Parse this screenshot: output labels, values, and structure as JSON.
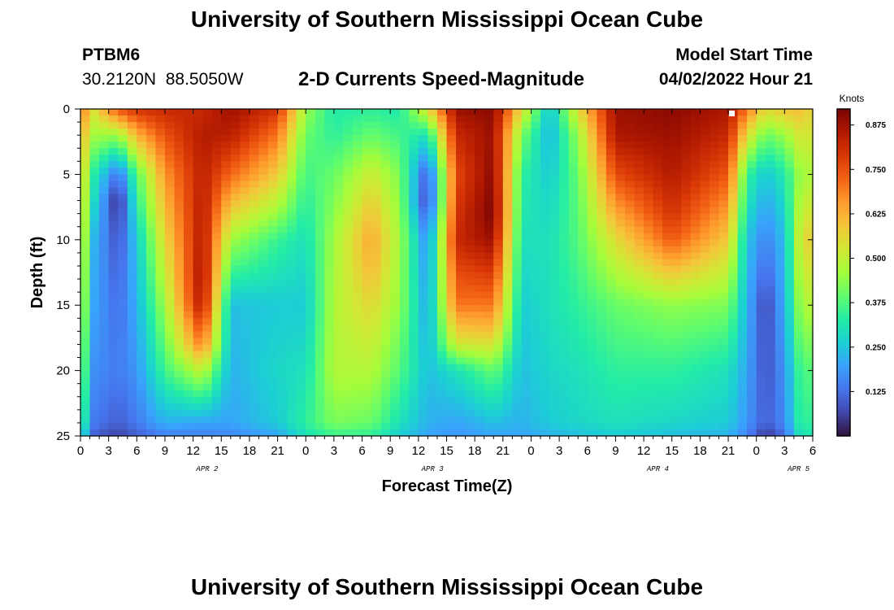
{
  "header": {
    "title": "University of Southern Mississippi Ocean Cube",
    "station_id": "PTBM6",
    "station_coords": "30.2120N  88.5050W",
    "subtitle": "2-D Currents Speed-Magnitude",
    "start_label": "Model Start Time",
    "start_value": "04/02/2022 Hour 21"
  },
  "footer": {
    "title": "University of Southern Mississippi Ocean Cube"
  },
  "chart_data": {
    "type": "heatmap",
    "title": "2-D Currents Speed-Magnitude",
    "xlabel": "Forecast Time(Z)",
    "ylabel": "Depth (ft)",
    "x_tick_labels": [
      "0",
      "3",
      "6",
      "9",
      "12",
      "15",
      "18",
      "21",
      "0",
      "3",
      "6",
      "9",
      "12",
      "15",
      "18",
      "21",
      "0",
      "3",
      "6",
      "9",
      "12",
      "15",
      "18",
      "21",
      "0",
      "3",
      "6"
    ],
    "day_labels": [
      {
        "label": "APR 2",
        "x_index": 4.5
      },
      {
        "label": "APR 3",
        "x_index": 12.5
      },
      {
        "label": "APR 4",
        "x_index": 20.5
      },
      {
        "label": "APR 5",
        "x_index": 25.5
      }
    ],
    "y_ticks": [
      0,
      5,
      10,
      15,
      20,
      25
    ],
    "ylim": [
      25,
      0
    ],
    "x_range_hours": [
      0,
      78
    ],
    "colorbar": {
      "label": "Knots",
      "range": [
        0,
        0.92
      ],
      "ticks": [
        "0.125",
        "0.250",
        "0.375",
        "0.500",
        "0.625",
        "0.750",
        "0.875"
      ],
      "tick_values": [
        0.125,
        0.25,
        0.375,
        0.5,
        0.625,
        0.75,
        0.875
      ]
    },
    "colors": {
      "stops": [
        "#30123b",
        "#4145ab",
        "#4675ed",
        "#39a2fc",
        "#1bcfd4",
        "#24eca6",
        "#61fc6c",
        "#a4fc3b",
        "#d1e834",
        "#f3c63a",
        "#fe9b2d",
        "#f36315",
        "#d93806",
        "#b11901",
        "#7a0403"
      ]
    },
    "speed_profiles_knots": [
      {
        "hour": 0,
        "depth_ft": [
          0,
          2,
          5,
          10,
          15,
          20,
          24,
          25
        ],
        "speed": [
          0.7,
          0.62,
          0.58,
          0.56,
          0.52,
          0.45,
          0.38,
          0.3
        ]
      },
      {
        "hour": 1.5,
        "depth_ft": [
          0,
          2,
          5,
          10,
          15,
          20,
          24,
          25
        ],
        "speed": [
          0.55,
          0.46,
          0.32,
          0.22,
          0.2,
          0.17,
          0.14,
          0.1
        ]
      },
      {
        "hour": 4,
        "depth_ft": [
          0,
          2,
          5,
          7,
          10,
          15,
          20,
          24,
          25
        ],
        "speed": [
          0.75,
          0.45,
          0.12,
          0.02,
          0.08,
          0.12,
          0.14,
          0.1,
          0.06
        ]
      },
      {
        "hour": 6,
        "depth_ft": [
          0,
          2,
          5,
          10,
          15,
          20,
          24,
          25
        ],
        "speed": [
          0.8,
          0.62,
          0.38,
          0.26,
          0.22,
          0.18,
          0.14,
          0.1
        ]
      },
      {
        "hour": 9,
        "depth_ft": [
          0,
          2,
          5,
          10,
          15,
          20,
          24,
          25
        ],
        "speed": [
          0.82,
          0.75,
          0.66,
          0.56,
          0.46,
          0.36,
          0.22,
          0.15
        ]
      },
      {
        "hour": 13,
        "depth_ft": [
          0,
          2,
          5,
          10,
          13,
          15,
          18,
          20,
          24,
          25
        ],
        "speed": [
          0.82,
          0.85,
          0.84,
          0.86,
          0.88,
          0.86,
          0.7,
          0.5,
          0.2,
          0.15
        ]
      },
      {
        "hour": 16,
        "depth_ft": [
          0,
          2,
          5,
          10,
          15,
          20,
          24,
          25
        ],
        "speed": [
          0.88,
          0.84,
          0.72,
          0.46,
          0.24,
          0.22,
          0.2,
          0.16
        ]
      },
      {
        "hour": 21,
        "depth_ft": [
          0,
          2,
          5,
          8,
          10,
          15,
          20,
          24,
          25
        ],
        "speed": [
          0.8,
          0.7,
          0.58,
          0.45,
          0.35,
          0.26,
          0.28,
          0.26,
          0.2
        ]
      },
      {
        "hour": 24,
        "depth_ft": [
          0,
          2,
          5,
          10,
          15,
          20,
          24,
          25
        ],
        "speed": [
          0.45,
          0.4,
          0.36,
          0.3,
          0.26,
          0.3,
          0.34,
          0.3
        ]
      },
      {
        "hour": 27,
        "depth_ft": [
          0,
          2,
          5,
          10,
          15,
          20,
          24,
          25
        ],
        "speed": [
          0.32,
          0.34,
          0.4,
          0.46,
          0.48,
          0.48,
          0.42,
          0.35
        ]
      },
      {
        "hour": 31,
        "depth_ft": [
          0,
          2,
          5,
          8,
          10,
          12,
          15,
          20,
          24,
          25
        ],
        "speed": [
          0.34,
          0.4,
          0.52,
          0.6,
          0.64,
          0.62,
          0.56,
          0.48,
          0.4,
          0.34
        ]
      },
      {
        "hour": 34,
        "depth_ft": [
          0,
          2,
          5,
          10,
          15,
          20,
          24,
          25
        ],
        "speed": [
          0.32,
          0.36,
          0.42,
          0.46,
          0.44,
          0.38,
          0.3,
          0.26
        ]
      },
      {
        "hour": 37,
        "depth_ft": [
          0,
          2,
          5,
          7,
          10,
          15,
          20,
          24,
          25
        ],
        "speed": [
          0.55,
          0.3,
          0.08,
          0.05,
          0.16,
          0.2,
          0.24,
          0.22,
          0.2
        ]
      },
      {
        "hour": 40,
        "depth_ft": [
          0,
          2,
          5,
          10,
          15,
          18,
          20,
          24,
          25
        ],
        "speed": [
          0.88,
          0.82,
          0.76,
          0.82,
          0.7,
          0.52,
          0.3,
          0.2,
          0.18
        ]
      },
      {
        "hour": 44,
        "depth_ft": [
          0,
          2,
          5,
          8,
          10,
          15,
          17,
          20,
          24,
          25
        ],
        "speed": [
          0.9,
          0.88,
          0.9,
          0.92,
          0.88,
          0.7,
          0.6,
          0.4,
          0.24,
          0.2
        ]
      },
      {
        "hour": 47,
        "depth_ft": [
          0,
          2,
          5,
          10,
          15,
          20,
          24,
          25
        ],
        "speed": [
          0.55,
          0.42,
          0.34,
          0.3,
          0.26,
          0.24,
          0.22,
          0.2
        ]
      },
      {
        "hour": 50,
        "depth_ft": [
          0,
          2,
          5,
          10,
          15,
          20,
          24,
          25
        ],
        "speed": [
          0.24,
          0.22,
          0.26,
          0.3,
          0.3,
          0.28,
          0.26,
          0.22
        ]
      },
      {
        "hour": 53,
        "depth_ft": [
          0,
          2,
          5,
          10,
          15,
          20,
          24,
          25
        ],
        "speed": [
          0.55,
          0.45,
          0.4,
          0.38,
          0.34,
          0.3,
          0.28,
          0.24
        ]
      },
      {
        "hour": 57,
        "depth_ft": [
          0,
          2,
          5,
          10,
          15,
          20,
          24,
          25
        ],
        "speed": [
          0.88,
          0.86,
          0.76,
          0.55,
          0.4,
          0.34,
          0.3,
          0.26
        ]
      },
      {
        "hour": 63,
        "depth_ft": [
          0,
          2,
          5,
          8,
          10,
          12,
          15,
          20,
          24,
          25
        ],
        "speed": [
          0.9,
          0.88,
          0.85,
          0.8,
          0.74,
          0.62,
          0.44,
          0.34,
          0.28,
          0.24
        ]
      },
      {
        "hour": 69,
        "depth_ft": [
          0,
          2,
          5,
          10,
          15,
          20,
          24,
          25
        ],
        "speed": [
          0.86,
          0.82,
          0.74,
          0.58,
          0.42,
          0.3,
          0.26,
          0.22
        ]
      },
      {
        "hour": 71,
        "depth_ft": [
          0,
          2,
          5,
          10,
          15,
          20,
          24,
          25
        ],
        "speed": [
          0.7,
          0.55,
          0.35,
          0.25,
          0.22,
          0.2,
          0.18,
          0.15
        ]
      },
      {
        "hour": 73,
        "depth_ft": [
          0,
          2,
          5,
          10,
          15,
          20,
          24,
          25
        ],
        "speed": [
          0.55,
          0.4,
          0.25,
          0.15,
          0.06,
          0.08,
          0.1,
          0.04
        ]
      },
      {
        "hour": 75,
        "depth_ft": [
          0,
          2,
          5,
          10,
          15,
          20,
          24,
          25
        ],
        "speed": [
          0.6,
          0.45,
          0.32,
          0.24,
          0.22,
          0.18,
          0.16,
          0.12
        ]
      },
      {
        "hour": 77,
        "depth_ft": [
          0,
          2,
          5,
          10,
          15,
          20,
          24,
          25
        ],
        "speed": [
          0.6,
          0.55,
          0.48,
          0.58,
          0.5,
          0.4,
          0.38,
          0.34
        ]
      },
      {
        "hour": 78,
        "depth_ft": [
          0,
          2,
          5,
          10,
          15,
          20,
          24,
          25
        ],
        "speed": [
          0.55,
          0.5,
          0.45,
          0.55,
          0.45,
          0.35,
          0.3,
          0.28
        ]
      }
    ]
  }
}
